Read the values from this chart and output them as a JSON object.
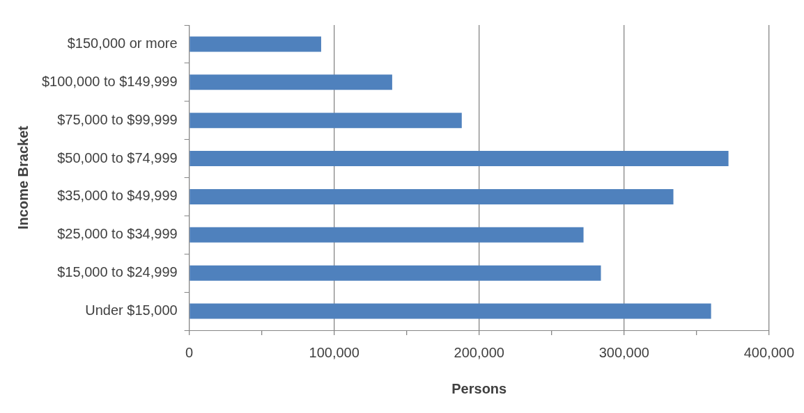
{
  "chart_data": {
    "type": "bar",
    "orientation": "horizontal",
    "xlabel": "Persons",
    "ylabel": "Income Bracket",
    "categories": [
      "$150,000 or more",
      "$100,000 to $149,999",
      "$75,000 to $99,999",
      "$50,000 to $74,999",
      "$35,000 to $49,999",
      "$25,000 to $34,999",
      "$15,000 to $24,999",
      "Under $15,000"
    ],
    "values": [
      91000,
      140000,
      188000,
      372000,
      334000,
      272000,
      284000,
      360000
    ],
    "color": "#4f81bd",
    "xlim": [
      0,
      400000
    ],
    "xticks": [
      0,
      {
        "value": 50000,
        "label": null
      },
      {
        "value": 100000,
        "label": "100,000"
      },
      {
        "value": 150000,
        "label": null
      },
      {
        "value": 200000,
        "label": "200,000"
      },
      {
        "value": 250000,
        "label": null
      },
      {
        "value": 300000,
        "label": "300,000"
      },
      {
        "value": 350000,
        "label": null
      },
      {
        "value": 400000,
        "label": "400,000"
      }
    ],
    "grid": "x",
    "legend": false
  }
}
